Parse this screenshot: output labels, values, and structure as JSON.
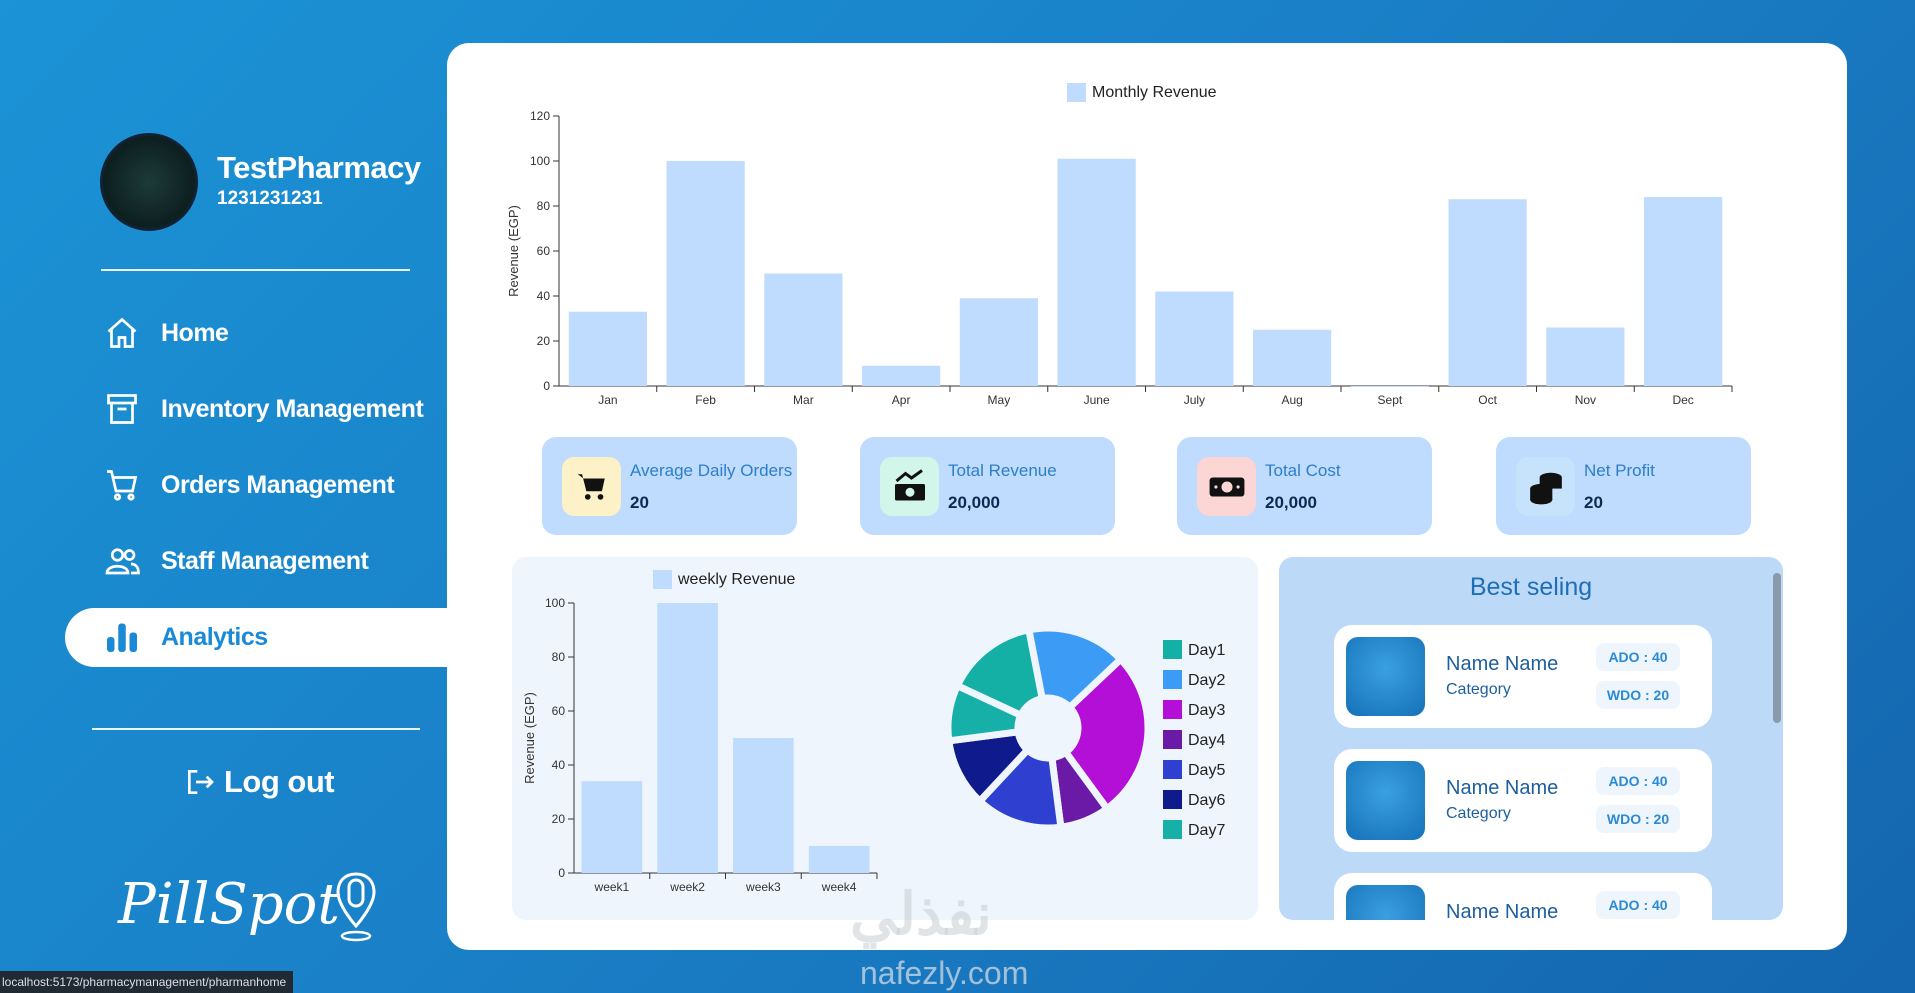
{
  "sidebar": {
    "pharmacy_name": "TestPharmacy",
    "pharmacy_id": "1231231231",
    "nav": [
      "Home",
      "Inventory Management",
      "Orders Management",
      "Staff Management",
      "Analytics"
    ],
    "logout": "Log out",
    "logo": "PillSpot"
  },
  "status_bar": "localhost:5173/pharmacymanagement/pharmanhome",
  "watermark": {
    "arabic": "نفذلي",
    "latin": "nafezly.com"
  },
  "stats": [
    {
      "title": "Average Daily Orders",
      "value": "20"
    },
    {
      "title": "Total Revenue",
      "value": "20,000"
    },
    {
      "title": "Total Cost",
      "value": "20,000"
    },
    {
      "title": "Net Profit",
      "value": "20"
    }
  ],
  "best_selling": {
    "title": "Best seling",
    "items": [
      {
        "name": "Name Name",
        "category": "Category",
        "ado": "ADO : 40",
        "wdo": "WDO : 20"
      },
      {
        "name": "Name Name",
        "category": "Category",
        "ado": "ADO : 40",
        "wdo": "WDO : 20"
      },
      {
        "name": "Name Name",
        "ado": "ADO : 40"
      }
    ]
  },
  "chart_data": [
    {
      "type": "bar",
      "y_label": "Revenue (EGP)",
      "categories": [
        "Jan",
        "Feb",
        "Mar",
        "Apr",
        "May",
        "June",
        "July",
        "Aug",
        "Sept",
        "Oct",
        "Nov",
        "Dec"
      ],
      "series": [
        {
          "name": "Monthly Revenue",
          "color": "#bfdbfe",
          "values": [
            33,
            100,
            50,
            9,
            39,
            101,
            42,
            25,
            0,
            83,
            26,
            84
          ]
        }
      ],
      "ylim": [
        0,
        120
      ],
      "yticks": [
        0,
        20,
        40,
        60,
        80,
        100,
        120
      ],
      "grid": false
    },
    {
      "type": "bar",
      "y_label": "Revenue (EGP)",
      "categories": [
        "week1",
        "week2",
        "week3",
        "week4"
      ],
      "series": [
        {
          "name": "weekly Revenue",
          "color": "#bfdbfe",
          "values": [
            34,
            100,
            50,
            10
          ]
        }
      ],
      "ylim": [
        0,
        100
      ],
      "yticks": [
        0,
        20,
        40,
        60,
        80,
        100
      ],
      "grid": false
    },
    {
      "type": "pie",
      "categories": [
        "Day1",
        "Day2",
        "Day3",
        "Day4",
        "Day5",
        "Day6",
        "Day7"
      ],
      "values": [
        15,
        16,
        27,
        8,
        14,
        11,
        9
      ],
      "colors": [
        "#14b0a6",
        "#3b9bf5",
        "#b40fd6",
        "#6a1aa6",
        "#2f3fd0",
        "#0f1a8c",
        "#17b0a8"
      ]
    }
  ]
}
